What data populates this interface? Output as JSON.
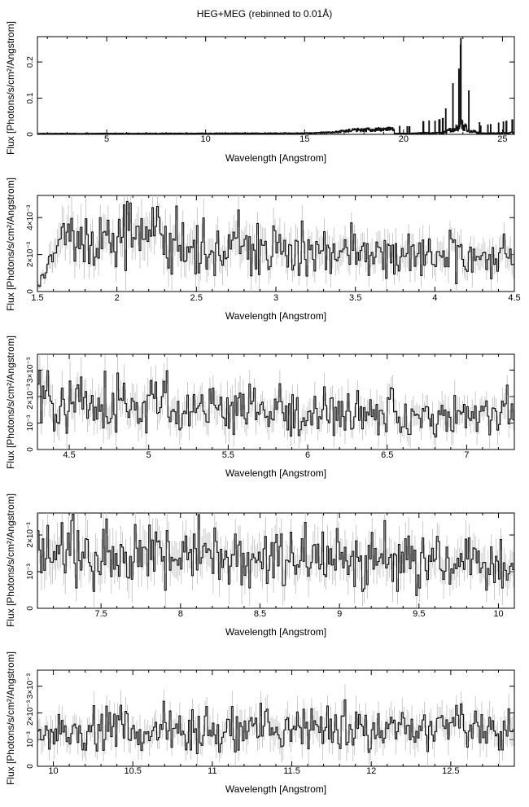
{
  "title": "HEG+MEG (rebinned to 0.01Å)",
  "chart_data": [
    {
      "type": "line",
      "xlabel": "Wavelength [Angstrom]",
      "ylabel": "Flux [Photons/s/cm²/Angstrom]",
      "xlim": [
        1.5,
        25.6
      ],
      "ylim": [
        0,
        0.27
      ],
      "xticks": [
        "5",
        "10",
        "15",
        "20",
        "25"
      ],
      "yticks": [
        "0",
        "0.1",
        "0.2"
      ],
      "series": [
        {
          "x": [
            1.5,
            15.0,
            16.5,
            17.5,
            18.5,
            19.5,
            19.8,
            20.3,
            21.0,
            21.3,
            21.6,
            21.8,
            22.0,
            22.5,
            22.8,
            22.9,
            23.3,
            23.9,
            24.4,
            24.8,
            25.2,
            25.5
          ],
          "y": [
            0.002,
            0.003,
            0.006,
            0.012,
            0.013,
            0.015,
            0.022,
            0.021,
            0.035,
            0.037,
            0.036,
            0.04,
            0.044,
            0.14,
            0.18,
            0.265,
            0.12,
            0.023,
            0.027,
            0.031,
            0.036,
            0.04
          ]
        }
      ]
    },
    {
      "type": "line",
      "xlabel": "Wavelength [Angstrom]",
      "ylabel": "Flux [Photons/s/cm²/Angstrom]",
      "xlim": [
        1.5,
        4.5
      ],
      "ylim": [
        0,
        0.0052
      ],
      "xticks": [
        "1.5",
        "2",
        "2.5",
        "3",
        "3.5",
        "4",
        "4.5"
      ],
      "yticks": [
        "0",
        "2×10⁻³",
        "4×10⁻³"
      ],
      "series": [
        {
          "x": [
            1.52,
            1.55,
            1.6,
            1.65,
            1.7,
            1.8,
            1.9,
            2.0,
            2.1,
            2.2,
            2.3,
            2.5,
            2.7,
            3.0,
            3.3,
            3.6,
            3.9,
            4.2,
            4.5
          ],
          "y": [
            0.0005,
            0.0009,
            0.0022,
            0.0028,
            0.0031,
            0.0027,
            0.0025,
            0.0027,
            0.0026,
            0.0033,
            0.0025,
            0.0024,
            0.0025,
            0.0022,
            0.0021,
            0.002,
            0.002,
            0.0019,
            0.0019
          ]
        }
      ]
    },
    {
      "type": "line",
      "xlabel": "Wavelength [Angstrom]",
      "ylabel": "Flux [Photons/s/cm²/Angstrom]",
      "xlim": [
        4.3,
        7.3
      ],
      "ylim": [
        0,
        0.0036
      ],
      "xticks": [
        "4.5",
        "5",
        "5.5",
        "6",
        "6.5",
        "7"
      ],
      "yticks": [
        "0",
        "10⁻³",
        "2×10⁻³",
        "3×10⁻³"
      ],
      "series": [
        {
          "x": [
            4.3,
            4.5,
            4.7,
            4.9,
            5.1,
            5.3,
            5.5,
            5.7,
            5.9,
            6.1,
            6.3,
            6.5,
            6.7,
            6.9,
            7.1,
            7.3
          ],
          "y": [
            0.0018,
            0.0017,
            0.0016,
            0.0016,
            0.0016,
            0.0015,
            0.0016,
            0.0014,
            0.0014,
            0.0013,
            0.0013,
            0.0013,
            0.0013,
            0.0013,
            0.0013,
            0.0013
          ]
        }
      ]
    },
    {
      "type": "line",
      "xlabel": "Wavelength [Angstrom]",
      "ylabel": "Flux [Photons/s/cm²/Angstrom]",
      "xlim": [
        7.1,
        10.1
      ],
      "ylim": [
        0,
        0.0026
      ],
      "xticks": [
        "7.5",
        "8",
        "8.5",
        "9",
        "9.5",
        "10"
      ],
      "yticks": [
        "0",
        "10⁻³",
        "2×10⁻³"
      ],
      "series": [
        {
          "x": [
            7.1,
            7.4,
            7.7,
            8.0,
            8.3,
            8.6,
            8.9,
            9.2,
            9.5,
            9.8,
            10.1
          ],
          "y": [
            0.0014,
            0.0014,
            0.0014,
            0.0014,
            0.0013,
            0.0013,
            0.0013,
            0.0013,
            0.0012,
            0.0012,
            0.0011
          ]
        }
      ]
    },
    {
      "type": "line",
      "xlabel": "Wavelength [Angstrom]",
      "ylabel": "Flux [Photons/s/cm²/Angstrom]",
      "xlim": [
        9.9,
        12.9
      ],
      "ylim": [
        0,
        0.0036
      ],
      "xticks": [
        "10",
        "10.5",
        "11",
        "11.5",
        "12",
        "12.5"
      ],
      "yticks": [
        "0",
        "10⁻³",
        "2×10⁻³",
        "3×10⁻³"
      ],
      "series": [
        {
          "x": [
            9.9,
            10.2,
            10.5,
            10.8,
            11.1,
            11.4,
            11.7,
            12.0,
            12.3,
            12.6,
            12.9
          ],
          "y": [
            0.0012,
            0.0013,
            0.0013,
            0.0013,
            0.0014,
            0.0014,
            0.0014,
            0.0014,
            0.0014,
            0.0014,
            0.0014
          ]
        }
      ]
    }
  ]
}
